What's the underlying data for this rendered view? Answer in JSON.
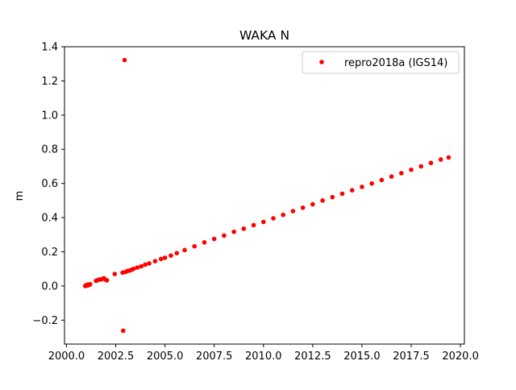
{
  "chart_data": {
    "type": "scatter",
    "title": "WAKA N",
    "xlabel": "",
    "ylabel": "m",
    "xlim": [
      1999.9,
      2020.2
    ],
    "ylim": [
      -0.34,
      1.4
    ],
    "xticks": [
      2000.0,
      2002.5,
      2005.0,
      2007.5,
      2010.0,
      2012.5,
      2015.0,
      2017.5,
      2020.0
    ],
    "xtick_labels": [
      "2000.0",
      "2002.5",
      "2005.0",
      "2007.5",
      "2010.0",
      "2012.5",
      "2015.0",
      "2017.5",
      "2020.0"
    ],
    "yticks": [
      -0.2,
      0.0,
      0.2,
      0.4,
      0.6,
      0.8,
      1.0,
      1.2,
      1.4
    ],
    "ytick_labels": [
      "−0.2",
      "0.0",
      "0.2",
      "0.4",
      "0.6",
      "0.8",
      "1.0",
      "1.2",
      "1.4"
    ],
    "grid": false,
    "legend_position": "upper-right",
    "series": [
      {
        "name": "repro2018a (IGS14)",
        "color": "#ff0000",
        "marker": "point",
        "points": [
          [
            2000.95,
            0.0
          ],
          [
            2001.0,
            0.005
          ],
          [
            2001.05,
            0.002
          ],
          [
            2001.1,
            0.008
          ],
          [
            2001.15,
            0.006
          ],
          [
            2001.2,
            0.01
          ],
          [
            2001.5,
            0.03
          ],
          [
            2001.6,
            0.035
          ],
          [
            2001.7,
            0.038
          ],
          [
            2001.8,
            0.04
          ],
          [
            2001.9,
            0.045
          ],
          [
            2002.0,
            0.036
          ],
          [
            2002.05,
            0.033
          ],
          [
            2002.45,
            0.07
          ],
          [
            2002.85,
            0.078
          ],
          [
            2002.88,
            -0.262
          ],
          [
            2002.95,
            1.322
          ],
          [
            2003.0,
            0.082
          ],
          [
            2003.1,
            0.088
          ],
          [
            2003.2,
            0.09
          ],
          [
            2003.3,
            0.095
          ],
          [
            2003.4,
            0.1
          ],
          [
            2003.6,
            0.108
          ],
          [
            2003.8,
            0.115
          ],
          [
            2004.0,
            0.125
          ],
          [
            2004.2,
            0.132
          ],
          [
            2004.5,
            0.145
          ],
          [
            2004.8,
            0.158
          ],
          [
            2005.0,
            0.165
          ],
          [
            2005.3,
            0.178
          ],
          [
            2005.6,
            0.192
          ],
          [
            2006.0,
            0.21
          ],
          [
            2006.5,
            0.232
          ],
          [
            2007.0,
            0.255
          ],
          [
            2007.5,
            0.275
          ],
          [
            2008.0,
            0.295
          ],
          [
            2008.5,
            0.317
          ],
          [
            2009.0,
            0.335
          ],
          [
            2009.5,
            0.356
          ],
          [
            2010.0,
            0.375
          ],
          [
            2010.5,
            0.396
          ],
          [
            2011.0,
            0.416
          ],
          [
            2011.5,
            0.438
          ],
          [
            2012.0,
            0.458
          ],
          [
            2012.5,
            0.478
          ],
          [
            2013.0,
            0.5
          ],
          [
            2013.5,
            0.52
          ],
          [
            2014.0,
            0.54
          ],
          [
            2014.5,
            0.56
          ],
          [
            2015.0,
            0.58
          ],
          [
            2015.5,
            0.6
          ],
          [
            2016.0,
            0.62
          ],
          [
            2016.5,
            0.64
          ],
          [
            2017.0,
            0.66
          ],
          [
            2017.5,
            0.68
          ],
          [
            2018.0,
            0.7
          ],
          [
            2018.5,
            0.72
          ],
          [
            2019.0,
            0.74
          ],
          [
            2019.4,
            0.752
          ]
        ]
      }
    ]
  }
}
